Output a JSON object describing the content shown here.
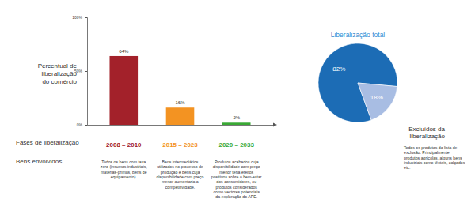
{
  "chart_data": [
    {
      "type": "bar",
      "y_label": "Percentual de liberalização do comércio",
      "x_label": "Fases de liberalização",
      "categories": [
        "2008 – 2010",
        "2015 – 2023",
        "2020 – 2033"
      ],
      "values": [
        64,
        16,
        2
      ],
      "value_labels": [
        "64%",
        "16%",
        "2%"
      ],
      "colors": [
        "#a3212a",
        "#f39322",
        "#3aa935"
      ],
      "ylim": [
        0,
        100
      ],
      "yticks": [
        {
          "value": 0,
          "label": "0%"
        },
        {
          "value": 50,
          "label": "50%"
        },
        {
          "value": 100,
          "label": "100%"
        }
      ],
      "grid": false,
      "data_labels": true,
      "annotations": {
        "label": "Bens envolvidos",
        "texts": [
          "Todos os bens com taxa zero (insumos industriais, matérias-primas, bens de equipamento).",
          "Bens intermediários utilizados no processo de produção e bens cuja disponibilidade com preço menor aumentaria a competitividade.",
          "Produtos acabados cuja disponibilidade com preço menor teria efeitos positivos sobre o bem-estar dos consumidores, ou produtos considerados como vectores potenciais da exploração do APE."
        ]
      }
    },
    {
      "type": "pie",
      "title": "Liberalização total",
      "categories": [
        null,
        "Excluídos da liberalização"
      ],
      "values": [
        82,
        18
      ],
      "value_labels": [
        "82%",
        "18%"
      ],
      "colors": [
        "#1c6cb5",
        "#a8bde3"
      ],
      "data_labels": true,
      "annotations": {
        "texts": [
          "Todos os produtos da lista de exclusão. Principalmente produtos agrícolas, alguns bens industriais como têxteis, calçados etc."
        ]
      }
    }
  ]
}
